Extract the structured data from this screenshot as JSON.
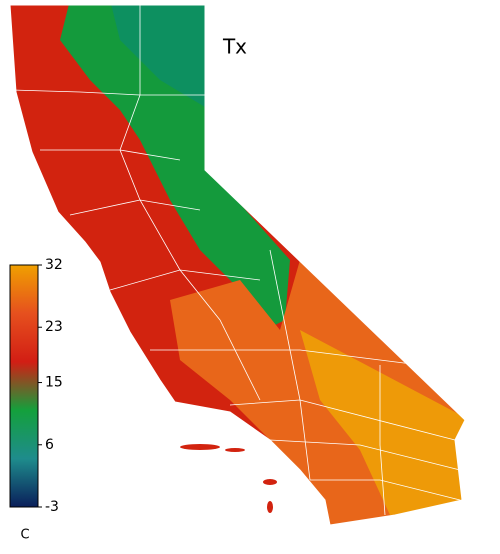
{
  "title": "Tx",
  "colorbar": {
    "label": "C",
    "lim": [
      -3,
      32
    ],
    "ticks": [
      -3,
      6,
      15,
      23,
      32
    ],
    "colors": [
      "#0a1e5a",
      "#1e8c8c",
      "#14a03c",
      "#d21e14",
      "#e6501e",
      "#f0a000"
    ]
  }
}
